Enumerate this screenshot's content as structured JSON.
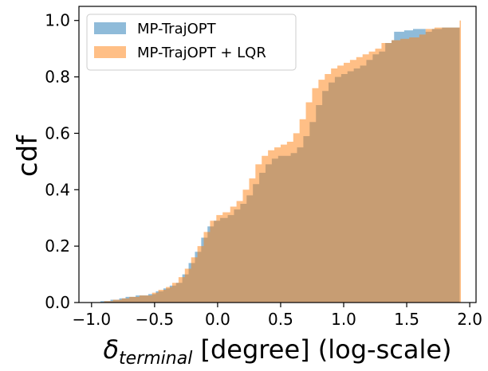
{
  "chart_data": {
    "type": "area",
    "title": "",
    "xlabel": "δ_terminal [degree] (log-scale)",
    "xlabel_parts": {
      "symbol": "δ",
      "subscript": "terminal",
      "rest": " [degree] (log-scale)"
    },
    "ylabel": "cdf",
    "xlim": [
      -1.1,
      2.05
    ],
    "ylim": [
      0,
      1.05
    ],
    "x_ticks": [
      -1.0,
      -0.5,
      0.0,
      0.5,
      1.0,
      1.5,
      2.0
    ],
    "x_tick_labels": [
      "−1.0",
      "−0.5",
      "0.0",
      "0.5",
      "1.0",
      "1.5",
      "2.0"
    ],
    "y_ticks": [
      0.0,
      0.2,
      0.4,
      0.6,
      0.8,
      1.0
    ],
    "y_tick_labels": [
      "0.0",
      "0.2",
      "0.4",
      "0.6",
      "0.8",
      "1.0"
    ],
    "grid": false,
    "legend_position": "top-left",
    "series": [
      {
        "name": "MP-TrajOPT",
        "color": "#1f77b4",
        "alpha": 0.5,
        "points": [
          [
            -0.95,
            0.0
          ],
          [
            -0.93,
            0.005
          ],
          [
            -0.85,
            0.01
          ],
          [
            -0.78,
            0.015
          ],
          [
            -0.73,
            0.02
          ],
          [
            -0.65,
            0.025
          ],
          [
            -0.55,
            0.03
          ],
          [
            -0.49,
            0.04
          ],
          [
            -0.43,
            0.05
          ],
          [
            -0.38,
            0.06
          ],
          [
            -0.33,
            0.07
          ],
          [
            -0.28,
            0.1
          ],
          [
            -0.23,
            0.14
          ],
          [
            -0.18,
            0.18
          ],
          [
            -0.13,
            0.23
          ],
          [
            -0.08,
            0.27
          ],
          [
            -0.03,
            0.29
          ],
          [
            0.02,
            0.3
          ],
          [
            0.08,
            0.31
          ],
          [
            0.13,
            0.33
          ],
          [
            0.18,
            0.35
          ],
          [
            0.23,
            0.38
          ],
          [
            0.28,
            0.42
          ],
          [
            0.33,
            0.46
          ],
          [
            0.38,
            0.49
          ],
          [
            0.43,
            0.51
          ],
          [
            0.48,
            0.52
          ],
          [
            0.53,
            0.52
          ],
          [
            0.58,
            0.53
          ],
          [
            0.63,
            0.55
          ],
          [
            0.68,
            0.59
          ],
          [
            0.73,
            0.64
          ],
          [
            0.78,
            0.7
          ],
          [
            0.83,
            0.75
          ],
          [
            0.88,
            0.78
          ],
          [
            0.93,
            0.8
          ],
          [
            0.98,
            0.81
          ],
          [
            1.03,
            0.82
          ],
          [
            1.08,
            0.83
          ],
          [
            1.13,
            0.84
          ],
          [
            1.18,
            0.86
          ],
          [
            1.23,
            0.88
          ],
          [
            1.28,
            0.89
          ],
          [
            1.33,
            0.92
          ],
          [
            1.38,
            0.93
          ],
          [
            1.4,
            0.96
          ],
          [
            1.48,
            0.965
          ],
          [
            1.55,
            0.97
          ],
          [
            1.62,
            0.97
          ],
          [
            1.65,
            0.96
          ],
          [
            1.7,
            0.97
          ],
          [
            1.78,
            0.975
          ],
          [
            1.85,
            0.975
          ],
          [
            1.9,
            0.975
          ],
          [
            1.92,
            1.0
          ]
        ]
      },
      {
        "name": "MP-TrajOPT + LQR",
        "color": "#ff7f0e",
        "alpha": 0.5,
        "points": [
          [
            -0.93,
            0.0
          ],
          [
            -0.9,
            0.005
          ],
          [
            -0.83,
            0.01
          ],
          [
            -0.76,
            0.015
          ],
          [
            -0.7,
            0.02
          ],
          [
            -0.62,
            0.025
          ],
          [
            -0.52,
            0.035
          ],
          [
            -0.47,
            0.045
          ],
          [
            -0.41,
            0.055
          ],
          [
            -0.36,
            0.07
          ],
          [
            -0.31,
            0.09
          ],
          [
            -0.26,
            0.12
          ],
          [
            -0.21,
            0.16
          ],
          [
            -0.16,
            0.2
          ],
          [
            -0.11,
            0.25
          ],
          [
            -0.06,
            0.29
          ],
          [
            -0.01,
            0.31
          ],
          [
            0.04,
            0.32
          ],
          [
            0.1,
            0.34
          ],
          [
            0.15,
            0.36
          ],
          [
            0.2,
            0.4
          ],
          [
            0.25,
            0.44
          ],
          [
            0.3,
            0.49
          ],
          [
            0.35,
            0.52
          ],
          [
            0.4,
            0.54
          ],
          [
            0.45,
            0.55
          ],
          [
            0.5,
            0.56
          ],
          [
            0.55,
            0.57
          ],
          [
            0.6,
            0.6
          ],
          [
            0.65,
            0.65
          ],
          [
            0.7,
            0.71
          ],
          [
            0.75,
            0.76
          ],
          [
            0.8,
            0.79
          ],
          [
            0.85,
            0.81
          ],
          [
            0.9,
            0.83
          ],
          [
            0.95,
            0.84
          ],
          [
            1.0,
            0.85
          ],
          [
            1.05,
            0.86
          ],
          [
            1.1,
            0.87
          ],
          [
            1.15,
            0.88
          ],
          [
            1.2,
            0.89
          ],
          [
            1.25,
            0.9
          ],
          [
            1.3,
            0.92
          ],
          [
            1.38,
            0.93
          ],
          [
            1.45,
            0.935
          ],
          [
            1.52,
            0.94
          ],
          [
            1.6,
            0.95
          ],
          [
            1.65,
            0.97
          ],
          [
            1.72,
            0.975
          ],
          [
            1.8,
            0.975
          ],
          [
            1.87,
            0.975
          ],
          [
            1.92,
            1.0
          ],
          [
            1.93,
            1.0
          ]
        ]
      }
    ]
  }
}
